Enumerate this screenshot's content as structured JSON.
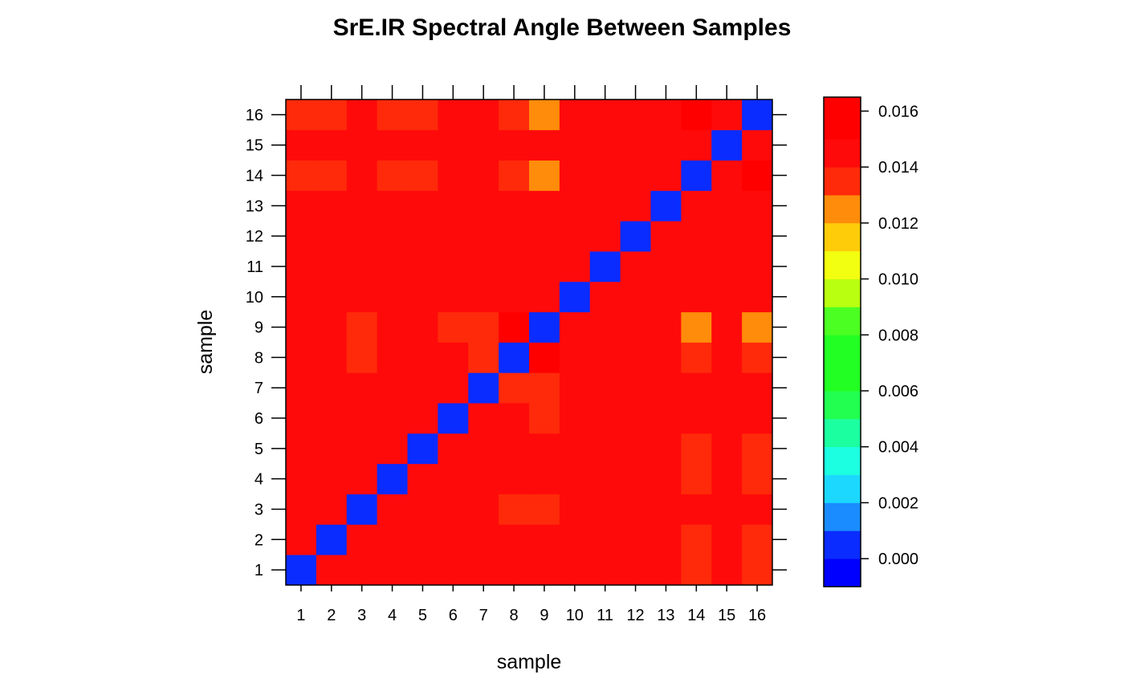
{
  "chart_data": {
    "type": "heatmap",
    "title": "SrE.IR Spectral Angle Between Samples",
    "xlabel": "sample",
    "ylabel": "sample",
    "x_categories": [
      "1",
      "2",
      "3",
      "4",
      "5",
      "6",
      "7",
      "8",
      "9",
      "10",
      "11",
      "12",
      "13",
      "14",
      "15",
      "16"
    ],
    "y_categories": [
      "1",
      "2",
      "3",
      "4",
      "5",
      "6",
      "7",
      "8",
      "9",
      "10",
      "11",
      "12",
      "13",
      "14",
      "15",
      "16"
    ],
    "value_rows_note": "values[i][j] = angle between sample i+1 (y, bottom=1) and sample j+1 (x)",
    "values": [
      [
        0.0,
        0.014,
        0.014,
        0.014,
        0.014,
        0.014,
        0.014,
        0.014,
        0.014,
        0.014,
        0.014,
        0.014,
        0.014,
        0.013,
        0.014,
        0.013
      ],
      [
        0.014,
        0.0,
        0.014,
        0.014,
        0.014,
        0.014,
        0.014,
        0.014,
        0.014,
        0.014,
        0.014,
        0.014,
        0.014,
        0.013,
        0.014,
        0.013
      ],
      [
        0.014,
        0.014,
        0.0,
        0.014,
        0.014,
        0.014,
        0.014,
        0.013,
        0.013,
        0.014,
        0.014,
        0.014,
        0.014,
        0.014,
        0.014,
        0.014
      ],
      [
        0.014,
        0.014,
        0.014,
        0.0,
        0.014,
        0.014,
        0.014,
        0.014,
        0.014,
        0.014,
        0.014,
        0.014,
        0.014,
        0.013,
        0.014,
        0.013
      ],
      [
        0.014,
        0.014,
        0.014,
        0.014,
        0.0,
        0.014,
        0.014,
        0.014,
        0.014,
        0.014,
        0.014,
        0.014,
        0.014,
        0.013,
        0.014,
        0.013
      ],
      [
        0.014,
        0.014,
        0.014,
        0.014,
        0.014,
        0.0,
        0.014,
        0.014,
        0.013,
        0.014,
        0.014,
        0.014,
        0.014,
        0.014,
        0.014,
        0.014
      ],
      [
        0.014,
        0.014,
        0.014,
        0.014,
        0.014,
        0.014,
        0.0,
        0.013,
        0.013,
        0.014,
        0.014,
        0.014,
        0.014,
        0.014,
        0.014,
        0.014
      ],
      [
        0.014,
        0.014,
        0.013,
        0.014,
        0.014,
        0.014,
        0.013,
        0.0,
        0.0155,
        0.014,
        0.014,
        0.014,
        0.014,
        0.013,
        0.014,
        0.013
      ],
      [
        0.014,
        0.014,
        0.013,
        0.014,
        0.014,
        0.013,
        0.013,
        0.0155,
        0.0,
        0.014,
        0.014,
        0.014,
        0.014,
        0.012,
        0.014,
        0.012
      ],
      [
        0.014,
        0.014,
        0.014,
        0.014,
        0.014,
        0.014,
        0.014,
        0.014,
        0.014,
        0.0,
        0.014,
        0.014,
        0.014,
        0.014,
        0.014,
        0.014
      ],
      [
        0.014,
        0.014,
        0.014,
        0.014,
        0.014,
        0.014,
        0.014,
        0.014,
        0.014,
        0.014,
        0.0,
        0.014,
        0.014,
        0.014,
        0.014,
        0.014
      ],
      [
        0.014,
        0.014,
        0.014,
        0.014,
        0.014,
        0.014,
        0.014,
        0.014,
        0.014,
        0.014,
        0.014,
        0.0,
        0.014,
        0.014,
        0.014,
        0.014
      ],
      [
        0.014,
        0.014,
        0.014,
        0.014,
        0.014,
        0.014,
        0.014,
        0.014,
        0.014,
        0.014,
        0.014,
        0.014,
        0.0,
        0.014,
        0.014,
        0.014
      ],
      [
        0.013,
        0.013,
        0.014,
        0.013,
        0.013,
        0.014,
        0.014,
        0.013,
        0.012,
        0.014,
        0.014,
        0.014,
        0.014,
        0.0,
        0.014,
        0.016
      ],
      [
        0.014,
        0.014,
        0.014,
        0.014,
        0.014,
        0.014,
        0.014,
        0.014,
        0.014,
        0.014,
        0.014,
        0.014,
        0.014,
        0.014,
        0.0,
        0.014
      ],
      [
        0.013,
        0.013,
        0.014,
        0.013,
        0.013,
        0.014,
        0.014,
        0.013,
        0.012,
        0.014,
        0.014,
        0.014,
        0.014,
        0.016,
        0.014,
        0.0
      ]
    ],
    "colorbar": {
      "range": [
        -0.001,
        0.0165
      ],
      "breaks": [
        -0.001,
        0.0,
        0.001,
        0.002,
        0.003,
        0.004,
        0.005,
        0.006,
        0.007,
        0.008,
        0.009,
        0.01,
        0.011,
        0.012,
        0.013,
        0.014,
        0.015,
        0.0165
      ],
      "colors": [
        "#0000FF",
        "#0A2CFF",
        "#1A8CFF",
        "#1CD8FF",
        "#1CFFE0",
        "#1CFFA0",
        "#22FF50",
        "#22FF22",
        "#22FF22",
        "#4CFF22",
        "#B8FF10",
        "#F2FF10",
        "#FFCC0A",
        "#FF8C0A",
        "#FF2A0A",
        "#FF0A0A",
        "#FF0000"
      ],
      "tick_values": [
        0.0,
        0.002,
        0.004,
        0.006,
        0.008,
        0.01,
        0.012,
        0.014,
        0.016
      ],
      "tick_labels": [
        "0.000",
        "0.002",
        "0.004",
        "0.006",
        "0.008",
        "0.010",
        "0.012",
        "0.014",
        "0.016"
      ]
    },
    "grid": false,
    "legend": "right colorbar"
  }
}
